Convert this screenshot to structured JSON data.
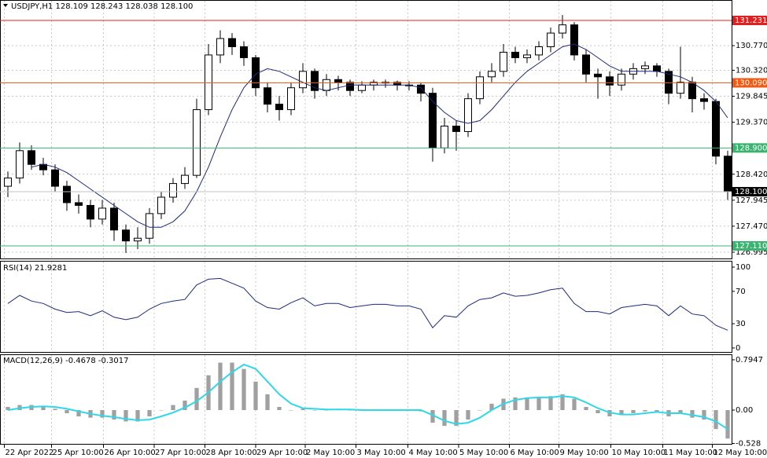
{
  "chart_data": [
    {
      "type": "candlestick",
      "title": "USDJPY,H1  128.109 128.243 128.038 128.100",
      "xlim": [
        -0.667,
        61.333
      ],
      "ylim": [
        126.88,
        131.59
      ],
      "grid": true,
      "xticks": [
        {
          "value": -0.3,
          "label": "22 Apr 2022"
        },
        {
          "value": 3.7,
          "label": "25 Apr 10:00"
        },
        {
          "value": 8.1,
          "label": "26 Apr 10:00"
        },
        {
          "value": 12.4,
          "label": "27 Apr 10:00"
        },
        {
          "value": 16.7,
          "label": "28 Apr 10:00"
        },
        {
          "value": 21,
          "label": "29 Apr 10:00"
        },
        {
          "value": 25.2,
          "label": "2 May 10:00"
        },
        {
          "value": 29.5,
          "label": "3 May 10:00"
        },
        {
          "value": 33.9,
          "label": "4 May 10:00"
        },
        {
          "value": 38.2,
          "label": "5 May 10:00"
        },
        {
          "value": 42.5,
          "label": "6 May 10:00"
        },
        {
          "value": 46.7,
          "label": "9 May 10:00"
        },
        {
          "value": 51.1,
          "label": "10 May 10:00"
        },
        {
          "value": 55.5,
          "label": "11 May 10:00"
        },
        {
          "value": 59.7,
          "label": "12 May 10:00"
        }
      ],
      "yticks": [
        {
          "value": 130.77,
          "label": "130.770"
        },
        {
          "value": 130.32,
          "label": "130.320"
        },
        129.845,
        {
          "value": 129.37,
          "label": "129.370"
        },
        {
          "value": 128.42,
          "label": "128.420"
        },
        127.945,
        {
          "value": 127.47,
          "label": "127.470"
        },
        126.995
      ],
      "levels": [
        {
          "value": 131.231,
          "color": "#e02020"
        },
        {
          "value": 130.09,
          "label": "130.090",
          "color": "#f05a14"
        },
        {
          "value": 128.9,
          "label": "128.900",
          "color": "#3cb371"
        },
        {
          "value": 127.11,
          "label": "127.110",
          "color": "#3cb371"
        }
      ],
      "last": {
        "value": 128.1,
        "label": "128.100"
      },
      "open": [
        128.2,
        128.35,
        128.85,
        128.6,
        128.5,
        128.2,
        127.9,
        127.85,
        127.6,
        127.8,
        127.4,
        127.2,
        127.25,
        127.7,
        128.0,
        128.25,
        128.4,
        129.6,
        130.6,
        130.9,
        130.75,
        130.55,
        130.0,
        129.7,
        129.6,
        130.0,
        130.3,
        129.95,
        130.15,
        130.1,
        129.95,
        130.05,
        130.1,
        130.1,
        130.05,
        130.05,
        129.9,
        128.9,
        129.3,
        129.2,
        129.8,
        130.2,
        130.3,
        130.65,
        130.55,
        130.6,
        130.75,
        131.0,
        131.15,
        130.6,
        130.25,
        130.2,
        130.05,
        130.25,
        130.35,
        130.4,
        130.3,
        129.9,
        130.1,
        129.8,
        129.75,
        128.75
      ],
      "high": [
        128.47,
        129.0,
        128.95,
        128.72,
        128.6,
        128.3,
        128.05,
        127.95,
        127.95,
        127.9,
        127.5,
        127.45,
        127.8,
        128.1,
        128.35,
        128.55,
        129.8,
        130.8,
        131.05,
        131.0,
        130.85,
        130.6,
        130.1,
        129.85,
        130.1,
        130.45,
        130.35,
        130.25,
        130.22,
        130.15,
        130.12,
        130.15,
        130.15,
        130.13,
        130.12,
        130.1,
        130.0,
        129.45,
        129.4,
        129.9,
        130.3,
        130.45,
        130.8,
        130.75,
        130.7,
        130.85,
        131.1,
        131.33,
        131.2,
        130.7,
        130.35,
        130.3,
        130.35,
        130.45,
        130.48,
        130.45,
        130.35,
        130.75,
        130.2,
        129.9,
        129.8,
        128.85
      ],
      "low": [
        128.0,
        128.25,
        128.5,
        128.4,
        128.1,
        127.75,
        127.7,
        127.45,
        127.5,
        127.2,
        126.98,
        127.05,
        127.15,
        127.6,
        127.9,
        128.15,
        128.35,
        129.5,
        130.45,
        130.6,
        130.4,
        129.85,
        129.55,
        129.4,
        129.5,
        129.9,
        129.8,
        129.85,
        129.95,
        129.85,
        129.9,
        129.95,
        130.0,
        129.95,
        129.95,
        129.75,
        128.65,
        128.8,
        128.85,
        129.1,
        129.7,
        130.1,
        130.2,
        130.45,
        130.45,
        130.5,
        130.65,
        130.9,
        130.5,
        130.1,
        129.8,
        129.85,
        129.95,
        130.15,
        130.25,
        130.2,
        129.7,
        129.8,
        129.55,
        129.6,
        128.6,
        127.95
      ],
      "close": [
        128.35,
        128.85,
        128.6,
        128.5,
        128.2,
        127.9,
        127.85,
        127.6,
        127.8,
        127.4,
        127.2,
        127.25,
        127.7,
        128.0,
        128.25,
        128.4,
        129.6,
        130.6,
        130.9,
        130.75,
        130.55,
        130.0,
        129.7,
        129.6,
        130.0,
        130.3,
        129.95,
        130.15,
        130.1,
        129.95,
        130.05,
        130.1,
        130.1,
        130.05,
        130.05,
        129.9,
        128.9,
        129.3,
        129.2,
        129.8,
        130.2,
        130.3,
        130.65,
        130.55,
        130.6,
        130.75,
        131.0,
        131.15,
        130.6,
        130.25,
        130.2,
        130.05,
        130.25,
        130.35,
        130.4,
        130.3,
        129.9,
        130.1,
        129.8,
        129.75,
        128.75,
        128.1
      ],
      "ma": {
        "color": "#1c2a7a",
        "values": [
          null,
          null,
          128.55,
          128.6,
          128.55,
          128.45,
          128.3,
          128.15,
          128.0,
          127.85,
          127.7,
          127.55,
          127.45,
          127.45,
          127.55,
          127.75,
          128.1,
          128.55,
          129.1,
          129.6,
          130.0,
          130.25,
          130.35,
          130.3,
          130.2,
          130.1,
          130.0,
          129.95,
          130.0,
          130.05,
          130.05,
          130.05,
          130.05,
          130.05,
          130.05,
          130.0,
          129.75,
          129.55,
          129.4,
          129.35,
          129.4,
          129.6,
          129.85,
          130.1,
          130.3,
          130.45,
          130.6,
          130.75,
          130.8,
          130.7,
          130.55,
          130.4,
          130.3,
          130.3,
          130.3,
          130.3,
          130.25,
          130.2,
          130.1,
          129.95,
          129.75,
          129.45
        ]
      }
    },
    {
      "type": "line",
      "title": "RSI(14) 21.9281",
      "color": "#1c2a7a",
      "ylim": [
        -4.9,
        106.8
      ],
      "yticks": [
        100,
        70,
        30,
        0
      ],
      "values": [
        55,
        65,
        58,
        55,
        48,
        44,
        45,
        40,
        46,
        38,
        35,
        38,
        48,
        55,
        58,
        60,
        78,
        85,
        86,
        80,
        74,
        58,
        50,
        48,
        56,
        62,
        52,
        55,
        55,
        50,
        52,
        54,
        54,
        52,
        52,
        48,
        25,
        40,
        38,
        52,
        60,
        62,
        68,
        64,
        65,
        68,
        72,
        74,
        55,
        45,
        45,
        42,
        50,
        52,
        54,
        52,
        40,
        52,
        42,
        40,
        28,
        22
      ]
    },
    {
      "type": "macd",
      "title": "MACD(12,26,9) -0.4678 -0.3017",
      "ylim": [
        -0.534,
        0.869
      ],
      "yticks": [
        0.7947,
        {
          "value": 0,
          "label": "0.00"
        },
        -0.528
      ],
      "histogram": {
        "color": "#a0a0a0",
        "values": [
          0.05,
          0.08,
          0.08,
          0.06,
          0.02,
          -0.05,
          -0.1,
          -0.12,
          -0.12,
          -0.15,
          -0.18,
          -0.18,
          -0.1,
          0.0,
          0.08,
          0.15,
          0.35,
          0.55,
          0.75,
          0.75,
          0.65,
          0.45,
          0.25,
          0.05,
          0.0,
          0.02,
          0.0,
          0.0,
          0.02,
          0.0,
          0.0,
          0.0,
          0.0,
          0.0,
          0.0,
          -0.02,
          -0.2,
          -0.25,
          -0.25,
          -0.15,
          0.0,
          0.1,
          0.18,
          0.2,
          0.2,
          0.2,
          0.22,
          0.25,
          0.18,
          0.05,
          -0.05,
          -0.1,
          -0.08,
          -0.05,
          -0.02,
          -0.02,
          -0.1,
          -0.05,
          -0.12,
          -0.15,
          -0.3,
          -0.45
        ]
      },
      "signal": {
        "color": "#2fd8e8",
        "values": [
          0.0,
          0.03,
          0.05,
          0.06,
          0.05,
          0.02,
          -0.02,
          -0.06,
          -0.09,
          -0.11,
          -0.14,
          -0.16,
          -0.15,
          -0.1,
          -0.04,
          0.04,
          0.14,
          0.28,
          0.45,
          0.6,
          0.72,
          0.65,
          0.45,
          0.25,
          0.1,
          0.03,
          0.02,
          0.01,
          0.01,
          0.01,
          0.0,
          0.0,
          0.0,
          0.0,
          0.0,
          0.0,
          -0.08,
          -0.17,
          -0.22,
          -0.2,
          -0.12,
          0.0,
          0.1,
          0.16,
          0.19,
          0.2,
          0.2,
          0.22,
          0.2,
          0.12,
          0.03,
          -0.04,
          -0.07,
          -0.07,
          -0.05,
          -0.03,
          -0.05,
          -0.05,
          -0.08,
          -0.11,
          -0.18,
          -0.3
        ]
      }
    }
  ]
}
